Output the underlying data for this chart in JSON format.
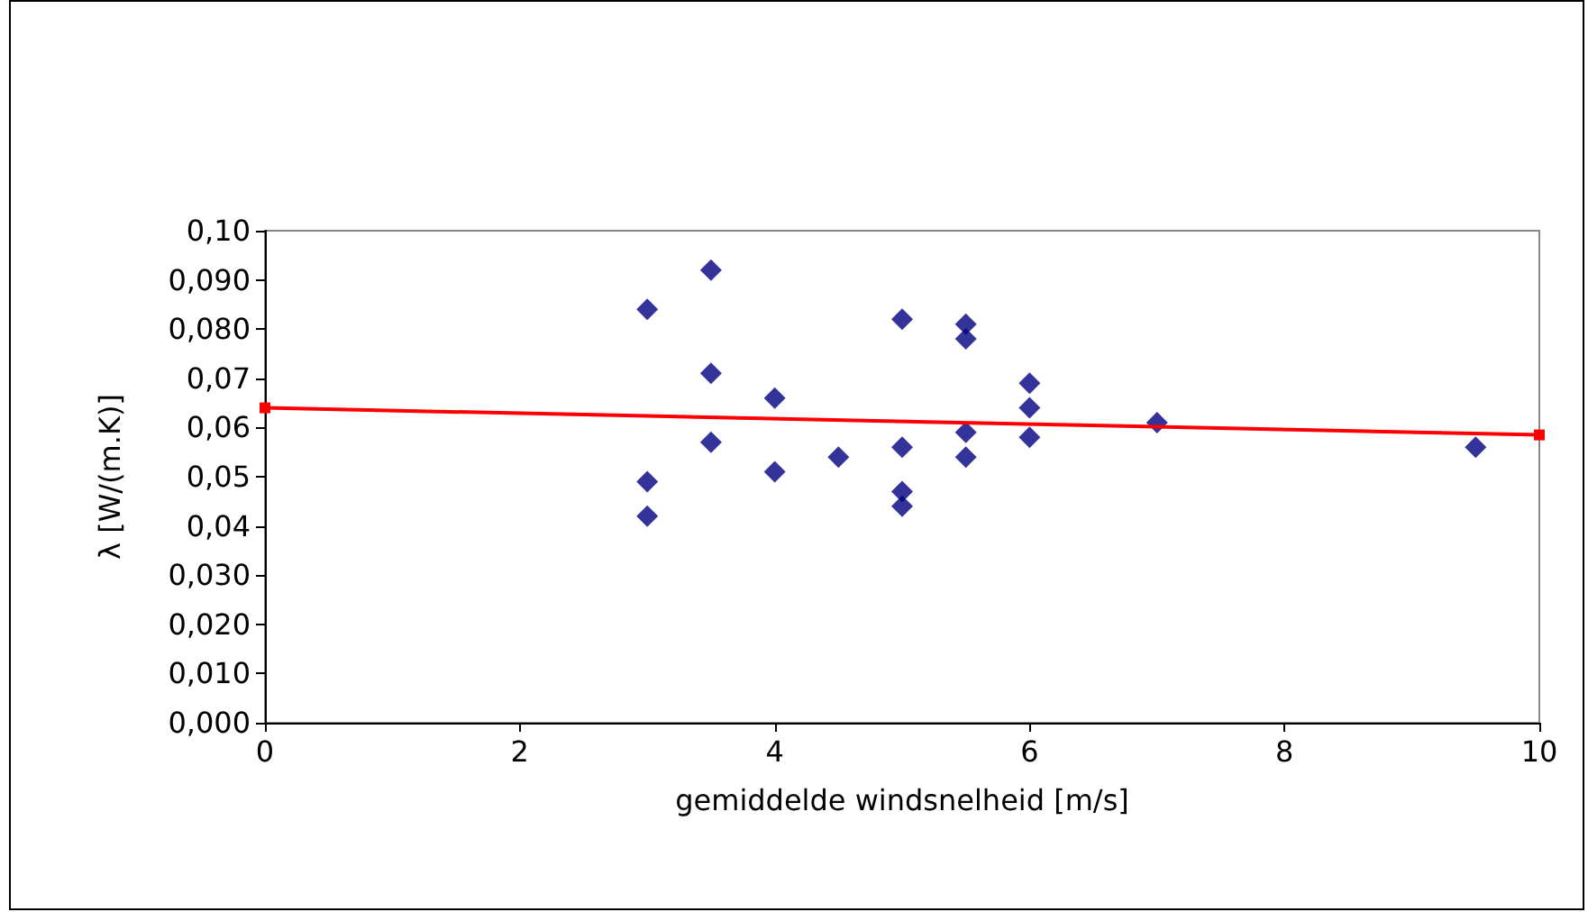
{
  "chart_data": {
    "type": "scatter",
    "xlabel": "gemiddelde windsnelheid [m/s]",
    "ylabel": "λ [W/(m.K)]",
    "xlim": [
      0,
      10
    ],
    "xticks": [
      0,
      2,
      4,
      6,
      8,
      10
    ],
    "ylim": [
      0,
      0.1
    ],
    "yticks": [
      {
        "value": 0,
        "label": "0,000"
      },
      {
        "value": 0.01,
        "label": "0,010"
      },
      {
        "value": 0.02,
        "label": "0,020"
      },
      {
        "value": 0.03,
        "label": "0,030"
      },
      {
        "value": 0.04,
        "label": "0,04"
      },
      {
        "value": 0.05,
        "label": "0,05"
      },
      {
        "value": 0.06,
        "label": "0,06"
      },
      {
        "value": 0.07,
        "label": "0,07"
      },
      {
        "value": 0.08,
        "label": "0,080"
      },
      {
        "value": 0.09,
        "label": "0,090"
      },
      {
        "value": 0.1,
        "label": "0,10"
      }
    ],
    "grid": false,
    "series": [
      {
        "color": "#000080",
        "marker": "diamond",
        "x": [
          3,
          3,
          3,
          3.5,
          3.5,
          3.5,
          4,
          4,
          4.5,
          5,
          5,
          5,
          5,
          5.5,
          5.5,
          5.5,
          5.5,
          6,
          6,
          6,
          7,
          9.5
        ],
        "values": [
          0.084,
          0.049,
          0.042,
          0.092,
          0.071,
          0.057,
          0.066,
          0.051,
          0.054,
          0.082,
          0.056,
          0.047,
          0.044,
          0.081,
          0.078,
          0.059,
          0.054,
          0.069,
          0.064,
          0.058,
          0.061,
          0.056
        ]
      },
      {
        "type": "line",
        "color": "#ff0000",
        "marker": "square",
        "line_style": "solid",
        "x": [
          0,
          10
        ],
        "values": [
          0.064,
          0.0585
        ]
      }
    ]
  }
}
